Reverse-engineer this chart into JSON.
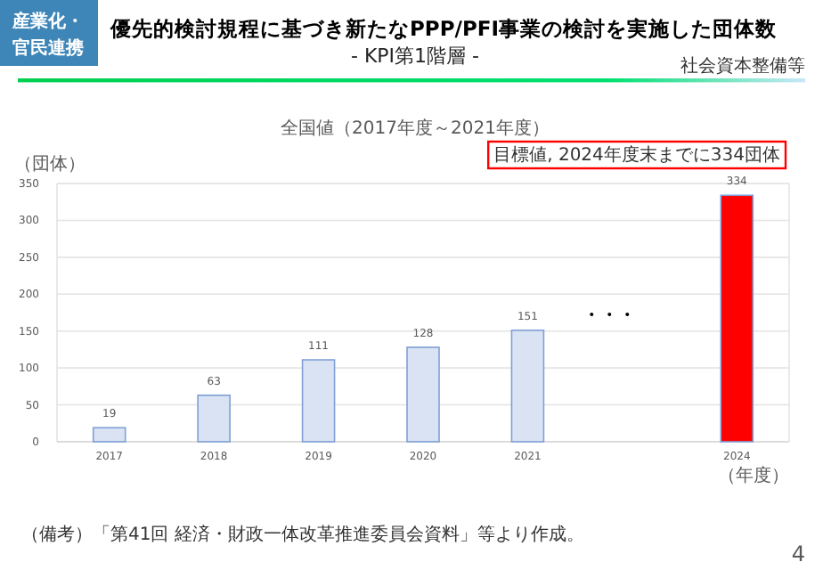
{
  "chart_data": {
    "type": "bar",
    "title": "優先的検討規程に基づき新たなPPP/PFI事業の検討を実施した団体数",
    "subtitle": "- KPI第1階層 -",
    "ylabel": "（団体）",
    "xlabel": "（年度）",
    "categories": [
      "2017",
      "2018",
      "2019",
      "2020",
      "2021",
      null,
      "2024"
    ],
    "values": [
      19,
      63,
      111,
      128,
      151,
      null,
      334
    ],
    "colors": [
      "#dae3f3",
      "#dae3f3",
      "#dae3f3",
      "#dae3f3",
      "#dae3f3",
      null,
      "#ff0000"
    ],
    "ylim": [
      0,
      350
    ],
    "yticks": [
      0,
      50,
      100,
      150,
      200,
      250,
      300,
      350
    ],
    "grid": "y",
    "data_labels": true,
    "annotations": [
      "産業化・",
      "官民連携",
      "社会資本整備等",
      "全国値（2017年度～2021年度）",
      "目標値, 2024年度末までに334団体",
      "・・・",
      "（備考）「第41回 経済・財政一体改革推進委員会資料」等より作成。",
      "4"
    ]
  }
}
